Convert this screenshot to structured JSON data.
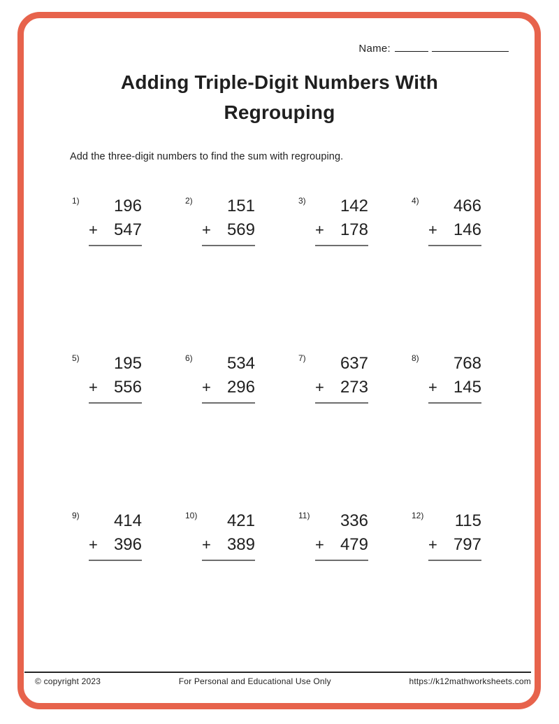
{
  "header": {
    "name_label": "Name:",
    "title_line1": "Adding Triple-Digit Numbers With",
    "title_line2": "Regrouping",
    "instructions": "Add the three-digit numbers to find the sum with regrouping."
  },
  "problems": [
    {
      "label": "1)",
      "operator": "+",
      "addend_top": "196",
      "addend_bottom": "547"
    },
    {
      "label": "2)",
      "operator": "+",
      "addend_top": "151",
      "addend_bottom": "569"
    },
    {
      "label": "3)",
      "operator": "+",
      "addend_top": "142",
      "addend_bottom": "178"
    },
    {
      "label": "4)",
      "operator": "+",
      "addend_top": "466",
      "addend_bottom": "146"
    },
    {
      "label": "5)",
      "operator": "+",
      "addend_top": "195",
      "addend_bottom": "556"
    },
    {
      "label": "6)",
      "operator": "+",
      "addend_top": "534",
      "addend_bottom": "296"
    },
    {
      "label": "7)",
      "operator": "+",
      "addend_top": "637",
      "addend_bottom": "273"
    },
    {
      "label": "8)",
      "operator": "+",
      "addend_top": "768",
      "addend_bottom": "145"
    },
    {
      "label": "9)",
      "operator": "+",
      "addend_top": "414",
      "addend_bottom": "396"
    },
    {
      "label": "10)",
      "operator": "+",
      "addend_top": "421",
      "addend_bottom": "389"
    },
    {
      "label": "11)",
      "operator": "+",
      "addend_top": "336",
      "addend_bottom": "479"
    },
    {
      "label": "12)",
      "operator": "+",
      "addend_top": "115",
      "addend_bottom": "797"
    }
  ],
  "footer": {
    "copyright": "© copyright 2023",
    "usage": "For Personal and Educational Use Only",
    "url": "https://k12mathworksheets.com"
  },
  "colors": {
    "border": "#E7634C",
    "text": "#1f1f1f",
    "sum_line": "#6e6e6e"
  }
}
